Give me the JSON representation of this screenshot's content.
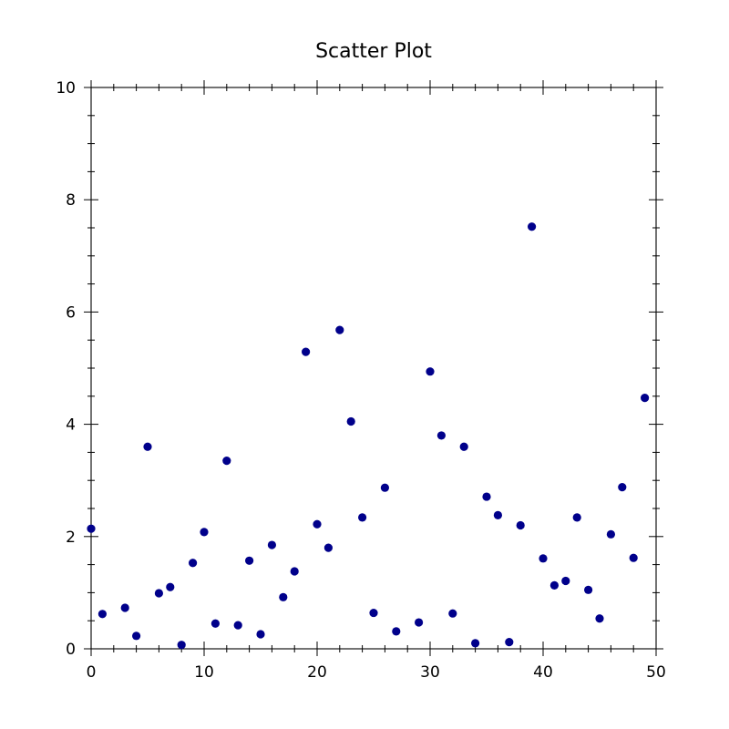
{
  "chart_data": {
    "type": "scatter",
    "title": "Scatter Plot",
    "xlabel": "",
    "ylabel": "",
    "xlim": [
      0,
      50
    ],
    "ylim": [
      0,
      10
    ],
    "x_ticks": [
      0,
      10,
      20,
      30,
      40,
      50
    ],
    "y_ticks": [
      0,
      2,
      4,
      6,
      8,
      10
    ],
    "x_tick_labels": [
      "0",
      "10",
      "20",
      "30",
      "40",
      "50"
    ],
    "y_tick_labels": [
      "0",
      "2",
      "4",
      "6",
      "8",
      "10"
    ],
    "x_minor_step": 2,
    "y_minor_step": 0.5,
    "grid": false,
    "marker_color": "#00008b",
    "series": [
      {
        "x": [
          0,
          1,
          3,
          4,
          5,
          6,
          7,
          8,
          9,
          10,
          11,
          12,
          13,
          14,
          15,
          16,
          17,
          18,
          19,
          20,
          21,
          22,
          23,
          24,
          25,
          26,
          27,
          29,
          30,
          31,
          32,
          33,
          34,
          35,
          36,
          37,
          38,
          39,
          40,
          41,
          42,
          43,
          44,
          45,
          46,
          47,
          48,
          49
        ],
        "y": [
          2.14,
          0.62,
          0.73,
          0.23,
          3.6,
          0.99,
          1.1,
          0.07,
          1.53,
          2.08,
          0.45,
          3.35,
          0.42,
          1.57,
          0.26,
          1.85,
          0.92,
          1.38,
          5.29,
          2.22,
          1.8,
          5.68,
          4.05,
          2.34,
          0.64,
          2.87,
          0.31,
          0.47,
          4.94,
          3.8,
          0.63,
          3.6,
          0.1,
          2.71,
          2.38,
          0.12,
          2.2,
          7.52,
          1.61,
          1.13,
          1.21,
          2.34,
          1.05,
          0.54,
          2.04,
          2.88,
          1.62,
          4.47
        ]
      }
    ]
  }
}
